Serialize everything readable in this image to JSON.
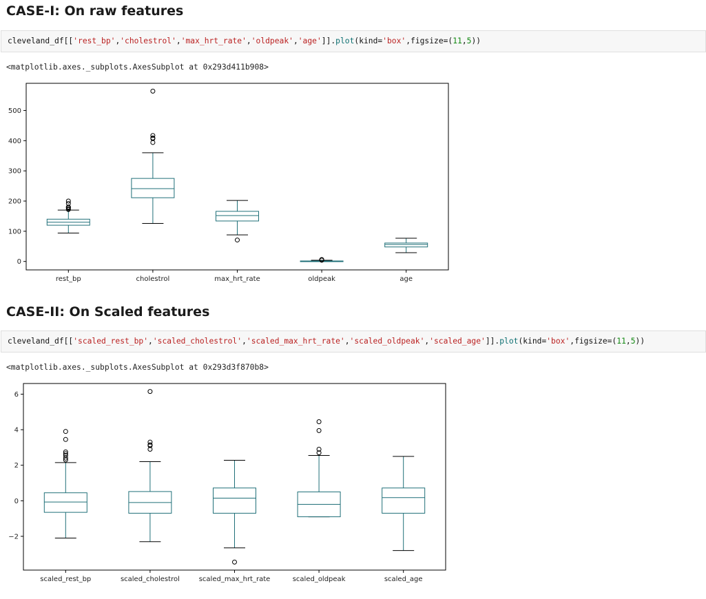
{
  "case1": {
    "heading": "CASE-I: On raw features",
    "code": {
      "prefix": "cleveland_df[[",
      "cols": [
        "'rest_bp'",
        "'cholestrol'",
        "'max_hrt_rate'",
        "'oldpeak'",
        "'age'"
      ],
      "after_cols": "]].",
      "method": "plot",
      "open": "(kind=",
      "kind": "'box'",
      "figsize_label": ",figsize=(",
      "fig_w": "11",
      "comma": ",",
      "fig_h": "5",
      "close": "))"
    },
    "output": "<matplotlib.axes._subplots.AxesSubplot at 0x293d411b908>"
  },
  "case2": {
    "heading": "CASE-II: On Scaled features",
    "code": {
      "prefix": "cleveland_df[[",
      "cols": [
        "'scaled_rest_bp'",
        "'scaled_cholestrol'",
        "'scaled_max_hrt_rate'",
        "'scaled_oldpeak'",
        "'scaled_age'"
      ],
      "after_cols": "]].",
      "method": "plot",
      "open": "(kind=",
      "kind": "'box'",
      "figsize_label": ",figsize=(",
      "fig_w": "11",
      "comma": ",",
      "fig_h": "5",
      "close": "))"
    },
    "output": "<matplotlib.axes._subplots.AxesSubplot at 0x293d3f870b8>"
  },
  "chart_data": [
    {
      "type": "box",
      "title": "",
      "xlabel": "",
      "ylabel": "",
      "ylim": [
        -28,
        590
      ],
      "yticks": [
        0,
        100,
        200,
        300,
        400,
        500
      ],
      "ytick_labels": [
        "0",
        "100",
        "200",
        "300",
        "400",
        "500"
      ],
      "grid": false,
      "box_color": "#1f6f78",
      "categories": [
        "rest_bp",
        "cholestrol",
        "max_hrt_rate",
        "oldpeak",
        "age"
      ],
      "boxes": [
        {
          "whislo": 94,
          "q1": 120,
          "med": 130,
          "q3": 140,
          "whishi": 170,
          "fliers": [
            172,
            174,
            178,
            180,
            180,
            192,
            200
          ]
        },
        {
          "whislo": 126,
          "q1": 211,
          "med": 241,
          "q3": 275,
          "whishi": 360,
          "fliers": [
            394,
            407,
            409,
            417,
            564
          ]
        },
        {
          "whislo": 88,
          "q1": 134,
          "med": 152,
          "q3": 166,
          "whishi": 202,
          "fliers": [
            71
          ]
        },
        {
          "whislo": 0,
          "q1": 0,
          "med": 0.8,
          "q3": 1.6,
          "whishi": 4,
          "fliers": [
            4.2,
            4.4,
            5.6,
            6.2
          ]
        },
        {
          "whislo": 29,
          "q1": 48,
          "med": 56,
          "q3": 61,
          "whishi": 77,
          "fliers": []
        }
      ]
    },
    {
      "type": "box",
      "title": "",
      "xlabel": "",
      "ylabel": "",
      "ylim": [
        -3.9,
        6.6
      ],
      "yticks": [
        -2,
        0,
        2,
        4,
        6
      ],
      "ytick_labels": [
        "−2",
        "0",
        "2",
        "4",
        "6"
      ],
      "grid": false,
      "box_color": "#1f6f78",
      "categories": [
        "scaled_rest_bp",
        "scaled_cholestrol",
        "scaled_max_hrt_rate",
        "scaled_oldpeak",
        "scaled_age"
      ],
      "boxes": [
        {
          "whislo": -2.1,
          "q1": -0.65,
          "med": -0.07,
          "q3": 0.45,
          "whishi": 2.15,
          "fliers": [
            2.3,
            2.4,
            2.55,
            2.65,
            2.75,
            3.45,
            3.9
          ]
        },
        {
          "whislo": -2.3,
          "q1": -0.7,
          "med": -0.1,
          "q3": 0.52,
          "whishi": 2.2,
          "fliers": [
            2.9,
            3.1,
            3.15,
            3.3,
            6.15
          ]
        },
        {
          "whislo": -2.65,
          "q1": -0.7,
          "med": 0.15,
          "q3": 0.72,
          "whishi": 2.28,
          "fliers": [
            -3.45
          ]
        },
        {
          "whislo": -0.9,
          "q1": -0.9,
          "med": -0.2,
          "q3": 0.5,
          "whishi": 2.55,
          "fliers": [
            2.7,
            2.9,
            3.95,
            4.45
          ]
        },
        {
          "whislo": -2.8,
          "q1": -0.7,
          "med": 0.18,
          "q3": 0.72,
          "whishi": 2.5,
          "fliers": []
        }
      ]
    }
  ]
}
